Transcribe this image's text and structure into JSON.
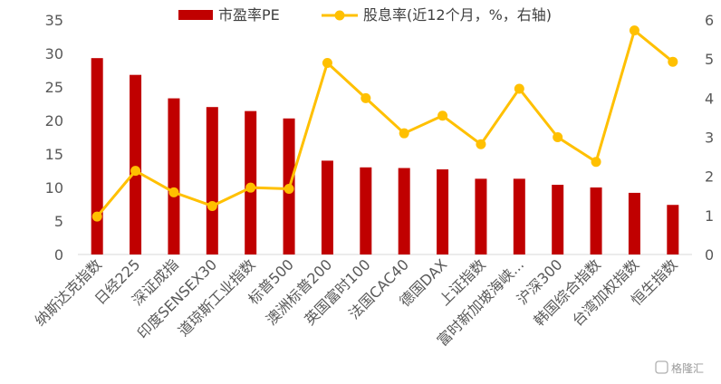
{
  "chart_data": {
    "type": "bar+line",
    "categories": [
      "纳斯达克指数",
      "日经225",
      "深证成指",
      "印度SENSEX30",
      "道琼斯工业指数",
      "标普500",
      "澳洲标普200",
      "英国富时100",
      "法国CAC40",
      "德国DAX",
      "上证指数",
      "富时新加坡海峡...",
      "沪深300",
      "韩国综合指数",
      "台湾加权指数",
      "恒生指数"
    ],
    "series": [
      {
        "name": "市盈率PE",
        "type": "bar",
        "axis": "left",
        "color": "#C00000",
        "values": [
          29.3,
          26.8,
          23.3,
          22.0,
          21.4,
          20.3,
          14.0,
          13.0,
          12.9,
          12.7,
          11.3,
          11.3,
          10.4,
          10.0,
          9.2,
          7.4
        ]
      },
      {
        "name": "股息率(近12个月，%，右轴)",
        "type": "line",
        "axis": "right",
        "color": "#FFC000",
        "values": [
          0.97,
          2.14,
          1.59,
          1.24,
          1.71,
          1.68,
          4.9,
          4.0,
          3.1,
          3.55,
          2.82,
          4.24,
          3.0,
          2.37,
          5.73,
          4.93
        ]
      }
    ],
    "ylim_left": [
      0,
      35
    ],
    "yticks_left": [
      0,
      5,
      10,
      15,
      20,
      25,
      30,
      35
    ],
    "ylim_right": [
      0,
      6
    ],
    "yticks_right": [
      0,
      1,
      2,
      3,
      4,
      5,
      6
    ],
    "legend": "top",
    "grid": false
  },
  "watermark": "格隆汇"
}
